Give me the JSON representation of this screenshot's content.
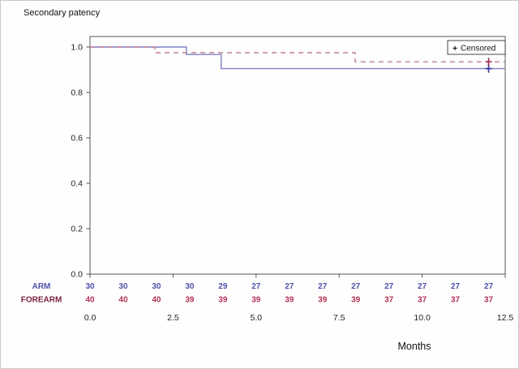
{
  "title": "Secondary patency",
  "legend": {
    "marker": "+",
    "label": "Censored"
  },
  "xlabel": "Months",
  "chart_data": {
    "type": "line",
    "subtype": "kaplan-meier-step",
    "title": "Secondary patency",
    "xlabel": "Months",
    "ylabel": "",
    "xlim": [
      0,
      12.5
    ],
    "ylim": [
      0.0,
      1.0
    ],
    "xticks": [
      0,
      2.5,
      5,
      7.5,
      10,
      12.5
    ],
    "yticks": [
      0,
      0.2,
      0.4,
      0.6,
      0.8,
      1.0
    ],
    "grid": false,
    "legend_position": "top-right-inside",
    "series": [
      {
        "name": "ARM",
        "color": "#7e82c6",
        "marker_color": "#3a3da0",
        "line_style": "solid",
        "steps": [
          [
            0,
            1.0
          ],
          [
            2.9,
            1.0
          ],
          [
            2.9,
            0.967
          ],
          [
            3.95,
            0.967
          ],
          [
            3.95,
            0.905
          ],
          [
            12.5,
            0.905
          ]
        ],
        "censored": [
          [
            12.0,
            0.905
          ]
        ]
      },
      {
        "name": "FOREARM",
        "color": "#c47e95",
        "marker_color": "#9e2d52",
        "line_style": "dashed",
        "steps": [
          [
            0,
            1.0
          ],
          [
            1.95,
            1.0
          ],
          [
            1.95,
            0.975
          ],
          [
            7.98,
            0.975
          ],
          [
            7.98,
            0.935
          ],
          [
            12.5,
            0.935
          ]
        ],
        "censored": [
          [
            12.0,
            0.935
          ]
        ]
      }
    ],
    "risk_table": {
      "months": [
        0,
        1,
        2,
        3,
        4,
        5,
        6,
        7,
        8,
        9,
        10,
        11,
        12
      ],
      "rows": [
        {
          "label": "ARM",
          "label_color": "#4d51a8",
          "value_color": "#4d51a8",
          "values": [
            30,
            30,
            30,
            30,
            29,
            27,
            27,
            27,
            27,
            27,
            27,
            27,
            27
          ]
        },
        {
          "label": "FOREARM",
          "label_color": "#7c2144",
          "value_color": "#b23055",
          "values": [
            40,
            40,
            40,
            39,
            39,
            39,
            39,
            39,
            39,
            37,
            37,
            37,
            37
          ]
        }
      ]
    }
  }
}
